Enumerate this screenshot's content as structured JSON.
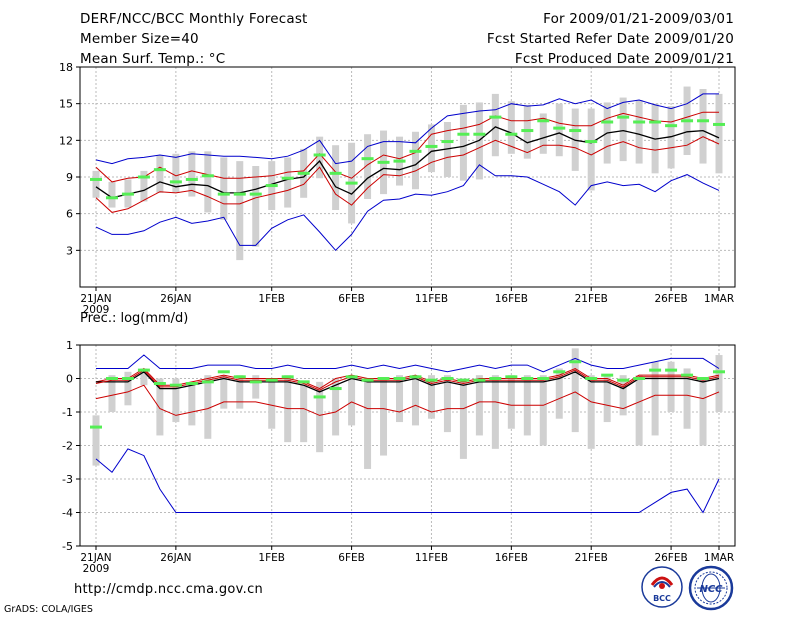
{
  "header": {
    "title": "DERF/NCC/BCC Monthly Forecast",
    "member_size": "Member Size=40",
    "variable": "Mean Surf. Temp.: °C",
    "period": "For 2009/01/21-2009/03/01",
    "start_date": "Fcst Started Refer Date 2009/01/20",
    "produced_date": "Fcst Produced Date 2009/01/21"
  },
  "subtitle": "Prec.: log(mm/d)",
  "url": "http://cmdp.ncc.cma.gov.cn",
  "grads": "GrADS: COLA/IGES",
  "logos": {
    "left_text": "BCC",
    "right_text": "NCC"
  },
  "colors": {
    "median": "#000000",
    "inner": "#cc0000",
    "outer": "#0000cc",
    "obs": "#55ee55",
    "box": "#d0d0d0",
    "grid": "#bbbbbb"
  },
  "chart_data": [
    {
      "type": "line",
      "name": "Mean Surf. Temp.",
      "ylim": [
        0,
        18
      ],
      "yticks": [
        3,
        6,
        9,
        12,
        15,
        18
      ],
      "xlim": [
        0,
        39
      ],
      "xticks": [
        {
          "x": 0,
          "label": "21JAN",
          "label2": "2009"
        },
        {
          "x": 5,
          "label": "26JAN"
        },
        {
          "x": 11,
          "label": "1FEB"
        },
        {
          "x": 16,
          "label": "6FEB"
        },
        {
          "x": 21,
          "label": "11FEB"
        },
        {
          "x": 26,
          "label": "16FEB"
        },
        {
          "x": 31,
          "label": "21FEB"
        },
        {
          "x": 36,
          "label": "26FEB"
        },
        {
          "x": 39,
          "label": "1MAR"
        }
      ],
      "series": [
        {
          "name": "max",
          "color": "#0000cc",
          "values": [
            10.4,
            10.1,
            10.5,
            10.6,
            10.8,
            10.6,
            10.9,
            10.8,
            10.7,
            10.7,
            10.6,
            10.5,
            10.7,
            11.2,
            12.0,
            10.1,
            10.3,
            11.5,
            11.9,
            11.9,
            11.8,
            13.0,
            14.0,
            14.2,
            14.4,
            14.5,
            15.0,
            14.8,
            14.9,
            15.4,
            15.0,
            15.3,
            14.6,
            15.1,
            15.3,
            14.9,
            14.6,
            15.0,
            15.8,
            15.8
          ]
        },
        {
          "name": "upper",
          "color": "#cc0000",
          "values": [
            9.8,
            8.6,
            8.9,
            9.0,
            9.8,
            9.1,
            9.5,
            9.2,
            8.9,
            8.9,
            9.0,
            9.1,
            9.4,
            9.5,
            10.9,
            9.4,
            8.9,
            10.0,
            10.8,
            10.5,
            11.0,
            12.5,
            12.8,
            13.0,
            13.3,
            14.0,
            13.6,
            13.6,
            13.8,
            13.4,
            13.2,
            13.2,
            13.8,
            14.2,
            13.9,
            13.6,
            13.5,
            13.9,
            14.3,
            14.3
          ]
        },
        {
          "name": "median",
          "color": "#000000",
          "values": [
            8.2,
            7.3,
            7.6,
            7.9,
            8.6,
            8.2,
            8.4,
            8.3,
            7.7,
            7.7,
            8.0,
            8.4,
            8.8,
            9.0,
            10.3,
            8.2,
            7.6,
            8.9,
            9.7,
            9.6,
            10.0,
            11.1,
            11.3,
            11.5,
            12.0,
            13.1,
            12.6,
            11.8,
            12.2,
            12.6,
            12.0,
            11.8,
            12.6,
            12.8,
            12.5,
            12.1,
            12.3,
            12.7,
            12.8,
            12.2
          ]
        },
        {
          "name": "lower",
          "color": "#cc0000",
          "values": [
            7.3,
            6.1,
            6.4,
            7.1,
            7.8,
            7.7,
            7.9,
            7.4,
            6.8,
            6.8,
            7.3,
            7.6,
            7.9,
            8.4,
            9.8,
            7.6,
            6.7,
            8.1,
            9.2,
            9.1,
            9.5,
            10.2,
            10.6,
            10.8,
            11.4,
            12.0,
            11.5,
            11.0,
            11.6,
            11.6,
            11.4,
            10.8,
            11.5,
            11.9,
            11.4,
            11.2,
            11.4,
            11.6,
            12.3,
            11.7
          ]
        },
        {
          "name": "min",
          "color": "#0000cc",
          "values": [
            4.9,
            4.3,
            4.3,
            4.6,
            5.3,
            5.7,
            5.2,
            5.4,
            5.7,
            3.4,
            3.4,
            4.8,
            5.5,
            5.9,
            4.5,
            3.0,
            4.3,
            6.2,
            7.1,
            7.2,
            7.6,
            7.5,
            7.8,
            8.3,
            10.0,
            9.1,
            9.1,
            9.0,
            8.4,
            7.8,
            6.7,
            8.3,
            8.6,
            8.3,
            8.4,
            7.8,
            8.7,
            9.2,
            8.5,
            7.9
          ]
        }
      ],
      "boxes": [
        [
          7.3,
          9.5
        ],
        [
          6.5,
          8.6
        ],
        [
          6.5,
          8.8
        ],
        [
          7.0,
          9.5
        ],
        [
          7.7,
          10.8
        ],
        [
          7.7,
          10.9
        ],
        [
          7.4,
          11.1
        ],
        [
          6.1,
          11.1
        ],
        [
          5.5,
          10.6
        ],
        [
          2.2,
          10.3
        ],
        [
          3.3,
          9.9
        ],
        [
          6.3,
          10.3
        ],
        [
          6.5,
          10.6
        ],
        [
          7.3,
          11.3
        ],
        [
          8.9,
          12.3
        ],
        [
          6.3,
          11.6
        ],
        [
          5.2,
          11.8
        ],
        [
          7.2,
          12.5
        ],
        [
          7.6,
          12.8
        ],
        [
          8.3,
          12.3
        ],
        [
          8.0,
          12.7
        ],
        [
          9.4,
          13.3
        ],
        [
          9.0,
          13.5
        ],
        [
          8.7,
          14.9
        ],
        [
          8.8,
          15.1
        ],
        [
          10.7,
          15.8
        ],
        [
          10.9,
          15.2
        ],
        [
          10.5,
          14.9
        ],
        [
          10.9,
          14.2
        ],
        [
          10.7,
          15.0
        ],
        [
          9.5,
          14.6
        ],
        [
          7.9,
          14.6
        ],
        [
          10.1,
          15.1
        ],
        [
          10.3,
          15.5
        ],
        [
          10.1,
          15.3
        ],
        [
          9.3,
          15.0
        ],
        [
          9.7,
          14.8
        ],
        [
          10.8,
          16.4
        ],
        [
          10.1,
          16.2
        ],
        [
          9.3,
          15.8
        ]
      ],
      "observed": [
        8.8,
        7.3,
        7.6,
        9.0,
        9.6,
        8.6,
        8.8,
        9.1,
        7.6,
        7.6,
        7.6,
        8.3,
        8.9,
        9.3,
        10.8,
        9.3,
        8.5,
        10.5,
        10.2,
        10.3,
        11.1,
        11.5,
        11.9,
        12.5,
        12.5,
        13.9,
        12.5,
        12.8,
        13.6,
        13.0,
        12.8,
        11.9,
        13.5,
        13.9,
        13.5,
        13.5,
        13.2,
        13.6,
        13.6,
        13.3
      ]
    },
    {
      "type": "line",
      "name": "Prec.: log(mm/d)",
      "ylim": [
        -5,
        1
      ],
      "yticks": [
        -5,
        -4,
        -3,
        -2,
        -1,
        0,
        1
      ],
      "xlim": [
        0,
        39
      ],
      "xticks": [
        {
          "x": 0,
          "label": "21JAN",
          "label2": "2009"
        },
        {
          "x": 5,
          "label": "26JAN"
        },
        {
          "x": 11,
          "label": "1FEB"
        },
        {
          "x": 16,
          "label": "6FEB"
        },
        {
          "x": 21,
          "label": "11FEB"
        },
        {
          "x": 26,
          "label": "16FEB"
        },
        {
          "x": 31,
          "label": "21FEB"
        },
        {
          "x": 36,
          "label": "26FEB"
        },
        {
          "x": 39,
          "label": "1MAR"
        }
      ],
      "series": [
        {
          "name": "max",
          "color": "#0000cc",
          "values": [
            0.3,
            0.3,
            0.3,
            0.7,
            0.3,
            0.3,
            0.3,
            0.4,
            0.4,
            0.4,
            0.3,
            0.3,
            0.4,
            0.3,
            0.3,
            0.3,
            0.4,
            0.3,
            0.4,
            0.3,
            0.4,
            0.3,
            0.2,
            0.3,
            0.4,
            0.3,
            0.4,
            0.4,
            0.2,
            0.4,
            0.6,
            0.4,
            0.3,
            0.3,
            0.4,
            0.5,
            0.6,
            0.6,
            0.6,
            0.3
          ]
        },
        {
          "name": "upper",
          "color": "#cc0000",
          "values": [
            -0.1,
            0.0,
            0.0,
            0.3,
            -0.2,
            -0.2,
            -0.1,
            0.0,
            0.1,
            0.0,
            0.0,
            0.0,
            0.0,
            -0.1,
            -0.3,
            0.0,
            0.1,
            0.0,
            0.0,
            0.0,
            0.1,
            -0.1,
            0.0,
            -0.1,
            0.0,
            0.0,
            0.0,
            0.0,
            0.0,
            0.1,
            0.3,
            0.0,
            0.0,
            -0.2,
            0.1,
            0.1,
            0.1,
            0.1,
            0.0,
            0.1
          ]
        },
        {
          "name": "median",
          "color": "#000000",
          "values": [
            -0.1,
            -0.1,
            -0.1,
            0.2,
            -0.3,
            -0.3,
            -0.2,
            -0.1,
            0.0,
            -0.1,
            -0.1,
            -0.1,
            -0.1,
            -0.2,
            -0.4,
            -0.2,
            0.0,
            -0.1,
            -0.1,
            -0.1,
            0.0,
            -0.2,
            -0.1,
            -0.2,
            -0.1,
            -0.1,
            -0.1,
            -0.1,
            -0.1,
            0.0,
            0.2,
            -0.1,
            -0.1,
            -0.3,
            0.0,
            0.0,
            0.0,
            0.0,
            -0.1,
            0.0
          ]
        },
        {
          "name": "lower",
          "color": "#cc0000",
          "values": [
            -0.6,
            -0.5,
            -0.4,
            -0.2,
            -0.9,
            -1.1,
            -1.0,
            -0.9,
            -0.7,
            -0.7,
            -0.7,
            -0.8,
            -0.9,
            -0.9,
            -1.1,
            -1.0,
            -0.7,
            -0.9,
            -0.9,
            -1.0,
            -0.8,
            -1.0,
            -0.9,
            -0.9,
            -0.7,
            -0.7,
            -0.8,
            -0.8,
            -0.8,
            -0.6,
            -0.4,
            -0.7,
            -0.8,
            -0.9,
            -0.7,
            -0.5,
            -0.5,
            -0.5,
            -0.6,
            -0.4
          ]
        },
        {
          "name": "min",
          "color": "#0000cc",
          "values": [
            -2.4,
            -2.8,
            -2.1,
            -2.3,
            -3.3,
            -4.0,
            -4.0,
            -4.0,
            -4.0,
            -4.0,
            -4.0,
            -4.0,
            -4.0,
            -4.0,
            -4.0,
            -4.0,
            -4.0,
            -4.0,
            -4.0,
            -4.0,
            -4.0,
            -4.0,
            -4.0,
            -4.0,
            -4.0,
            -4.0,
            -4.0,
            -4.0,
            -4.0,
            -4.0,
            -4.0,
            -4.0,
            -4.0,
            -4.0,
            -4.0,
            -3.7,
            -3.4,
            -3.3,
            -4.0,
            -3.0
          ]
        },
        {
          "name": "median2",
          "color": "#cc0000",
          "values": [
            -0.15,
            -0.05,
            -0.05,
            0.25,
            -0.25,
            -0.25,
            -0.15,
            -0.05,
            0.05,
            -0.05,
            -0.05,
            -0.05,
            -0.05,
            -0.15,
            -0.35,
            -0.1,
            0.05,
            -0.05,
            -0.05,
            -0.05,
            0.05,
            -0.15,
            -0.05,
            -0.15,
            -0.05,
            -0.05,
            -0.05,
            -0.05,
            -0.05,
            0.05,
            0.25,
            -0.05,
            -0.05,
            -0.25,
            0.05,
            0.05,
            0.05,
            0.05,
            -0.05,
            0.05
          ]
        }
      ],
      "boxes": [
        [
          -2.6,
          -1.1
        ],
        [
          -1.0,
          0.1
        ],
        [
          -0.8,
          0.2
        ],
        [
          -0.2,
          0.3
        ],
        [
          -1.7,
          0.0
        ],
        [
          -1.3,
          0.0
        ],
        [
          -1.4,
          -0.1
        ],
        [
          -1.8,
          0.1
        ],
        [
          -0.9,
          0.1
        ],
        [
          -0.9,
          0.1
        ],
        [
          -0.6,
          0.1
        ],
        [
          -1.5,
          0.0
        ],
        [
          -1.9,
          0.1
        ],
        [
          -1.9,
          -0.2
        ],
        [
          -2.2,
          -0.1
        ],
        [
          -1.7,
          0.0
        ],
        [
          -1.4,
          0.1
        ],
        [
          -2.7,
          0.0
        ],
        [
          -2.3,
          0.0
        ],
        [
          -1.3,
          0.1
        ],
        [
          -1.4,
          0.1
        ],
        [
          -1.2,
          0.1
        ],
        [
          -1.6,
          0.1
        ],
        [
          -2.4,
          0.0
        ],
        [
          -1.7,
          0.1
        ],
        [
          -2.1,
          0.1
        ],
        [
          -1.5,
          0.1
        ],
        [
          -1.7,
          0.1
        ],
        [
          -2.0,
          0.1
        ],
        [
          -1.2,
          0.3
        ],
        [
          -1.6,
          0.9
        ],
        [
          -2.1,
          0.1
        ],
        [
          -1.3,
          0.1
        ],
        [
          -1.1,
          0.1
        ],
        [
          -2.0,
          0.1
        ],
        [
          -1.7,
          0.5
        ],
        [
          -1.0,
          0.5
        ],
        [
          -1.5,
          0.3
        ],
        [
          -2.0,
          0.0
        ],
        [
          -1.0,
          0.7
        ]
      ],
      "observed": [
        -1.45,
        0.0,
        0.0,
        0.25,
        -0.15,
        -0.2,
        -0.15,
        -0.1,
        0.2,
        0.05,
        -0.1,
        -0.05,
        0.05,
        -0.1,
        -0.55,
        -0.3,
        0.05,
        -0.05,
        0.0,
        0.0,
        0.05,
        -0.05,
        0.0,
        -0.05,
        -0.05,
        0.0,
        0.05,
        0.0,
        0.0,
        0.2,
        0.5,
        0.0,
        0.1,
        -0.05,
        0.0,
        0.25,
        0.25,
        0.1,
        0.0,
        0.2
      ]
    }
  ]
}
